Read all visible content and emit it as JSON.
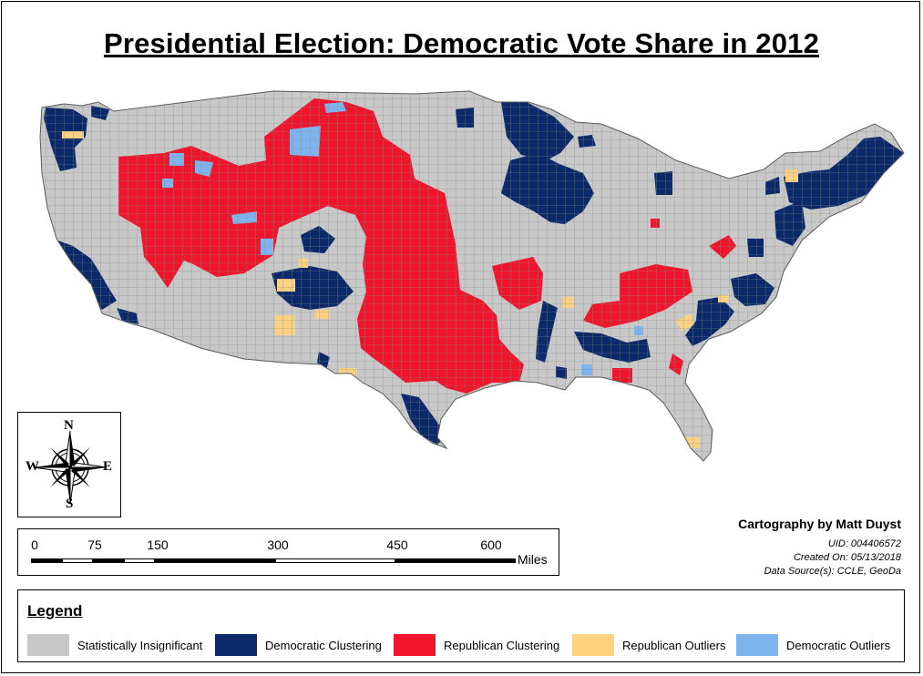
{
  "title": "Presidential Election: Democratic Vote Share in 2012",
  "compass": {
    "north": "N",
    "south": "S",
    "east": "E",
    "west": "W"
  },
  "scale_bar": {
    "ticks": [
      "0",
      "75",
      "150",
      "300",
      "450",
      "600"
    ],
    "unit": "Miles"
  },
  "credits": {
    "author": "Cartography by Matt Duyst",
    "uid": "UID: 004406572",
    "created": "Created On: 05/13/2018",
    "source": "Data Source(s): CCLE, GeoDa"
  },
  "legend": {
    "title": "Legend",
    "items": [
      {
        "label": "Statistically Insignificant",
        "color": "#c8c8c8"
      },
      {
        "label": "Democratic Clustering",
        "color": "#0b2a6b"
      },
      {
        "label": "Republican Clustering",
        "color": "#f2142a"
      },
      {
        "label": "Republican Outliers",
        "color": "#fcd17f"
      },
      {
        "label": "Democratic Outliers",
        "color": "#7db4ef"
      }
    ]
  },
  "colors": {
    "insignificant": "#c8c8c8",
    "democratic_cluster": "#0b2a6b",
    "republican_cluster": "#f2142a",
    "republican_outlier": "#fcd17f",
    "democratic_outlier": "#7db4ef",
    "county_border": "#8a8a8a"
  }
}
